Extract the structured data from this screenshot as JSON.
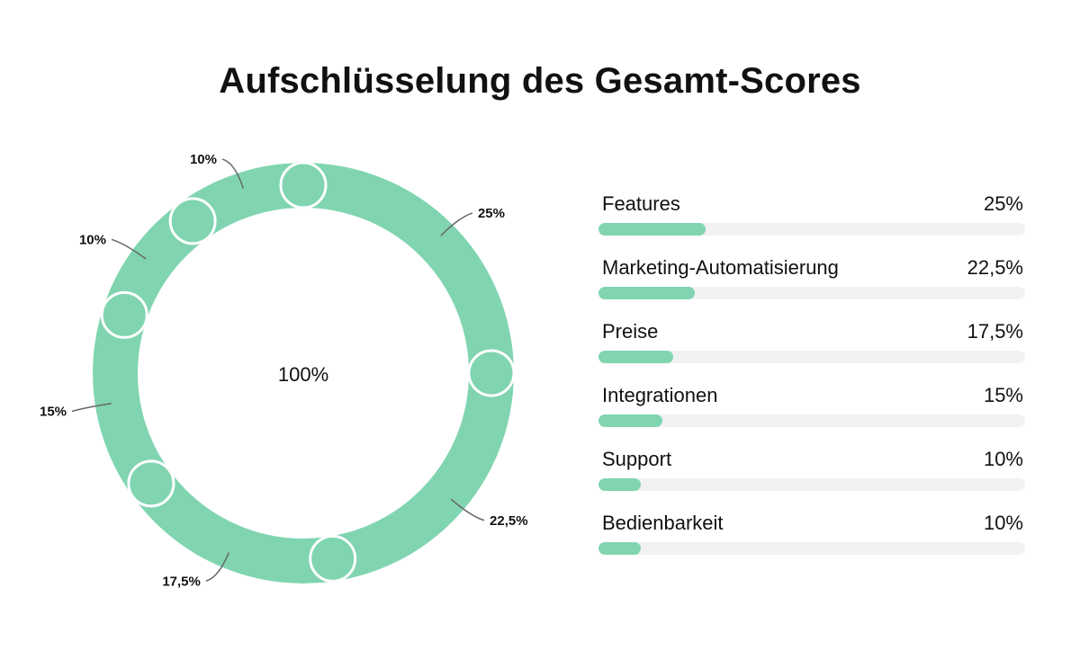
{
  "chart_data": {
    "type": "pie",
    "title": "Aufschlüsselung des Gesamt-Scores",
    "center_label": "100%",
    "categories": [
      "Features",
      "Marketing-Automatisierung",
      "Preise",
      "Integrationen",
      "Support",
      "Bedienbarkeit"
    ],
    "values": [
      25,
      22.5,
      17.5,
      15,
      10,
      10
    ],
    "value_labels": [
      "25%",
      "22,5%",
      "17,5%",
      "15%",
      "10%",
      "10%"
    ],
    "color": "#80d5b0",
    "track_color": "#f2f2f2"
  }
}
